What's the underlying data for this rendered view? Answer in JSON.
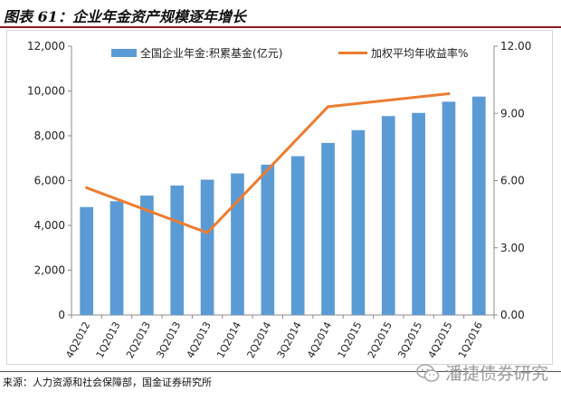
{
  "header": {
    "title": "图表 61：企业年金资产规模逐年增长"
  },
  "footer": {
    "source": "来源：人力资源和社会保障部，国金证券研究所",
    "watermark": "潘捷债券研究"
  },
  "colors": {
    "bar": "#5b9bd5",
    "line": "#ed7d31",
    "header_rule": "#8d1b22"
  },
  "chart_data": {
    "type": "bar",
    "categories": [
      "4Q2012",
      "1Q2013",
      "2Q2013",
      "3Q2013",
      "4Q2013",
      "1Q2014",
      "2Q2014",
      "3Q2014",
      "4Q2014",
      "1Q2015",
      "2Q2015",
      "3Q2015",
      "4Q2015",
      "1Q2016"
    ],
    "series": [
      {
        "name": "全国企业年金:积累基金(亿元)",
        "type": "bar",
        "axis": "left",
        "values": [
          4820,
          5080,
          5330,
          5780,
          6040,
          6320,
          6710,
          7090,
          7680,
          8250,
          8880,
          9020,
          9520,
          9750
        ]
      },
      {
        "name": "加权平均年收益率%",
        "type": "line",
        "axis": "right",
        "x": [
          "4Q2012",
          "4Q2013",
          "4Q2014",
          "4Q2015"
        ],
        "values": [
          5.68,
          3.67,
          9.3,
          9.88
        ]
      }
    ],
    "y_left": {
      "range": [
        0,
        12000
      ],
      "ticks": [
        "0",
        "2,000",
        "4,000",
        "6,000",
        "8,000",
        "10,000",
        "12,000"
      ]
    },
    "y_right": {
      "range": [
        0,
        12
      ],
      "ticks": [
        "0.00",
        "3.00",
        "6.00",
        "9.00",
        "12.00"
      ]
    },
    "grid": false,
    "legend": "top"
  }
}
